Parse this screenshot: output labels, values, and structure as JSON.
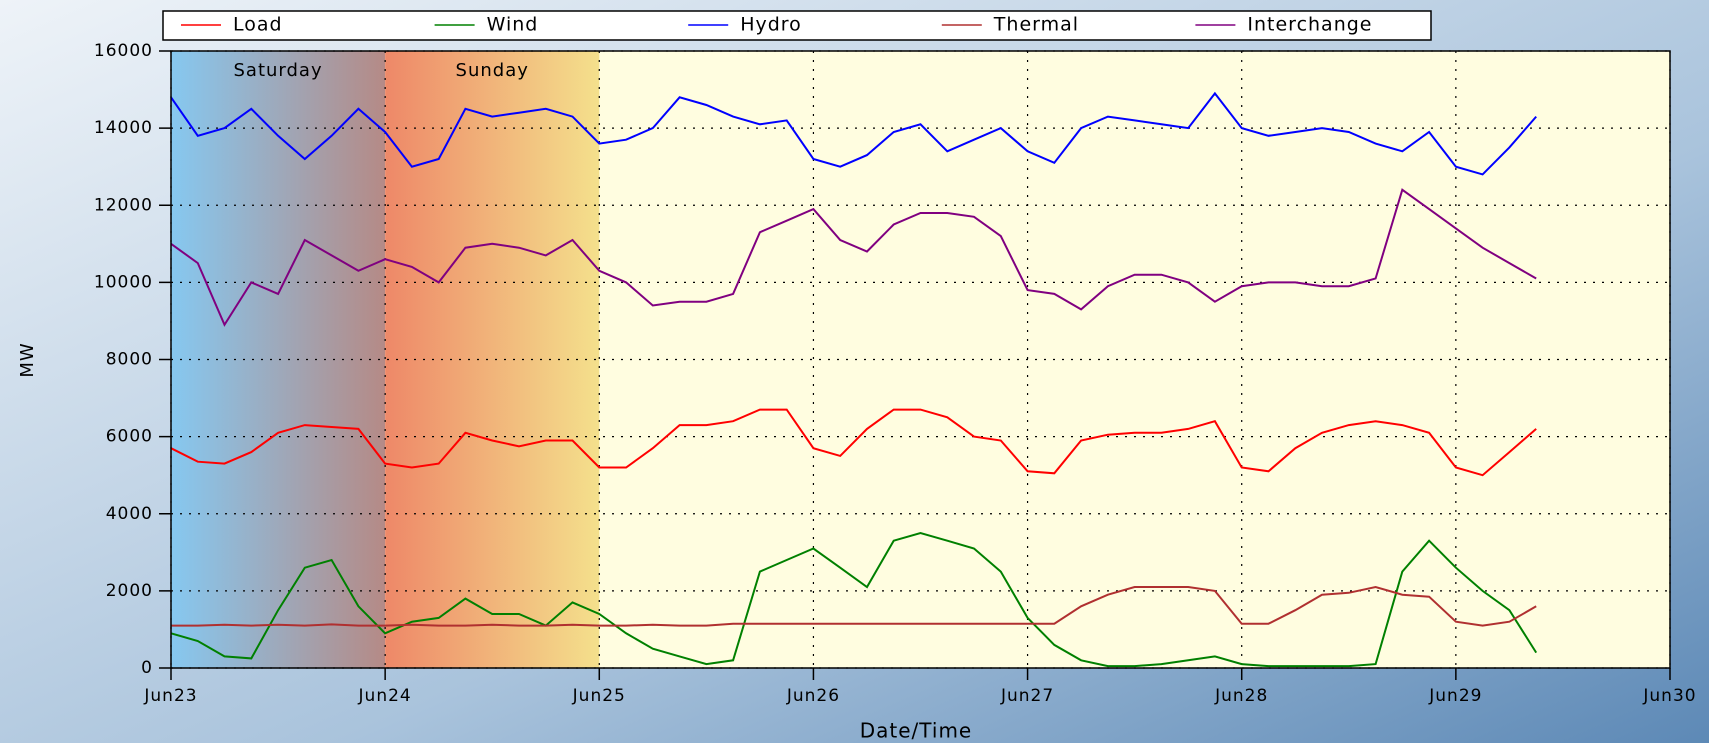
{
  "chart_data": {
    "type": "line",
    "xlabel": "Date/Time",
    "ylabel": "MW",
    "xlim": [
      0,
      7
    ],
    "ylim": [
      0,
      16000
    ],
    "xticks": [
      {
        "value": 0,
        "label": "Jun23"
      },
      {
        "value": 1,
        "label": "Jun24"
      },
      {
        "value": 2,
        "label": "Jun25"
      },
      {
        "value": 3,
        "label": "Jun26"
      },
      {
        "value": 4,
        "label": "Jun27"
      },
      {
        "value": 5,
        "label": "Jun28"
      },
      {
        "value": 6,
        "label": "Jun29"
      },
      {
        "value": 7,
        "label": "Jun30"
      }
    ],
    "yticks": [
      0,
      2000,
      4000,
      6000,
      8000,
      10000,
      12000,
      14000,
      16000
    ],
    "grid": true,
    "legend": "top",
    "annotations": [
      {
        "text": "Saturday",
        "start": 0,
        "end": 1
      },
      {
        "text": "Sunday",
        "start": 1,
        "end": 2
      }
    ],
    "x": [
      0,
      0.125,
      0.25,
      0.375,
      0.5,
      0.625,
      0.75,
      0.875,
      1,
      1.125,
      1.25,
      1.375,
      1.5,
      1.625,
      1.75,
      1.875,
      2,
      2.125,
      2.25,
      2.375,
      2.5,
      2.625,
      2.75,
      2.875,
      3,
      3.125,
      3.25,
      3.375,
      3.5,
      3.625,
      3.75,
      3.875,
      4,
      4.125,
      4.25,
      4.375,
      4.5,
      4.625,
      4.75,
      4.875,
      5,
      5.125,
      5.25,
      5.375,
      5.5,
      5.625,
      5.75,
      5.875,
      6,
      6.125,
      6.25,
      6.375
    ],
    "series": [
      {
        "name": "Load",
        "color": "#ff0000",
        "values": [
          5700,
          5350,
          5300,
          5600,
          6100,
          6300,
          6250,
          6200,
          5300,
          5200,
          5300,
          6100,
          5900,
          5750,
          5900,
          5900,
          5200,
          5200,
          5700,
          6300,
          6300,
          6400,
          6700,
          6700,
          5700,
          5500,
          6200,
          6700,
          6700,
          6500,
          6000,
          5900,
          5100,
          5050,
          5900,
          6050,
          6100,
          6100,
          6200,
          6400,
          5200,
          5100,
          5700,
          6100,
          6300,
          6400,
          6300,
          6100,
          5200,
          5000,
          5600,
          6200
        ]
      },
      {
        "name": "Wind",
        "color": "#008000",
        "values": [
          900,
          700,
          300,
          250,
          1500,
          2600,
          2800,
          1600,
          900,
          1200,
          1300,
          1800,
          1400,
          1400,
          1100,
          1700,
          1400,
          900,
          500,
          300,
          100,
          200,
          2500,
          2800,
          3100,
          2600,
          2100,
          3300,
          3500,
          3300,
          3100,
          2500,
          1300,
          600,
          200,
          50,
          50,
          100,
          200,
          300,
          100,
          50,
          50,
          50,
          50,
          100,
          2500,
          3300,
          2600,
          2000,
          1500,
          400
        ]
      },
      {
        "name": "Hydro",
        "color": "#0000ff",
        "values": [
          14800,
          13800,
          14000,
          14500,
          13800,
          13200,
          13800,
          14500,
          13900,
          13000,
          13200,
          14500,
          14300,
          14400,
          14500,
          14300,
          13600,
          13700,
          14000,
          14800,
          14600,
          14300,
          14100,
          14200,
          13200,
          13000,
          13300,
          13900,
          14100,
          13400,
          13700,
          14000,
          13400,
          13100,
          14000,
          14300,
          14200,
          14100,
          14000,
          14900,
          14000,
          13800,
          13900,
          14000,
          13900,
          13600,
          13400,
          13900,
          13000,
          12800,
          13500,
          14300
        ]
      },
      {
        "name": "Thermal",
        "color": "#b03030",
        "values": [
          1100,
          1100,
          1120,
          1100,
          1120,
          1100,
          1130,
          1100,
          1100,
          1120,
          1100,
          1100,
          1120,
          1100,
          1100,
          1120,
          1100,
          1100,
          1120,
          1100,
          1100,
          1150,
          1150,
          1150,
          1150,
          1150,
          1150,
          1150,
          1150,
          1150,
          1150,
          1150,
          1150,
          1150,
          1600,
          1900,
          2100,
          2100,
          2100,
          2000,
          1150,
          1150,
          1500,
          1900,
          1950,
          2100,
          1900,
          1850,
          1200,
          1100,
          1200,
          1600
        ]
      },
      {
        "name": "Interchange",
        "color": "#800080",
        "values": [
          11000,
          10500,
          8900,
          10000,
          9700,
          11100,
          10700,
          10300,
          10600,
          10400,
          10000,
          10900,
          11000,
          10900,
          10700,
          11100,
          10300,
          10000,
          9400,
          9500,
          9500,
          9700,
          11300,
          11600,
          11900,
          11100,
          10800,
          11500,
          11800,
          11800,
          11700,
          11200,
          9800,
          9700,
          9300,
          9900,
          10200,
          10200,
          10000,
          9500,
          9900,
          10000,
          10000,
          9900,
          9900,
          10100,
          12400,
          11900,
          11400,
          10900,
          10500,
          10100
        ]
      }
    ]
  }
}
